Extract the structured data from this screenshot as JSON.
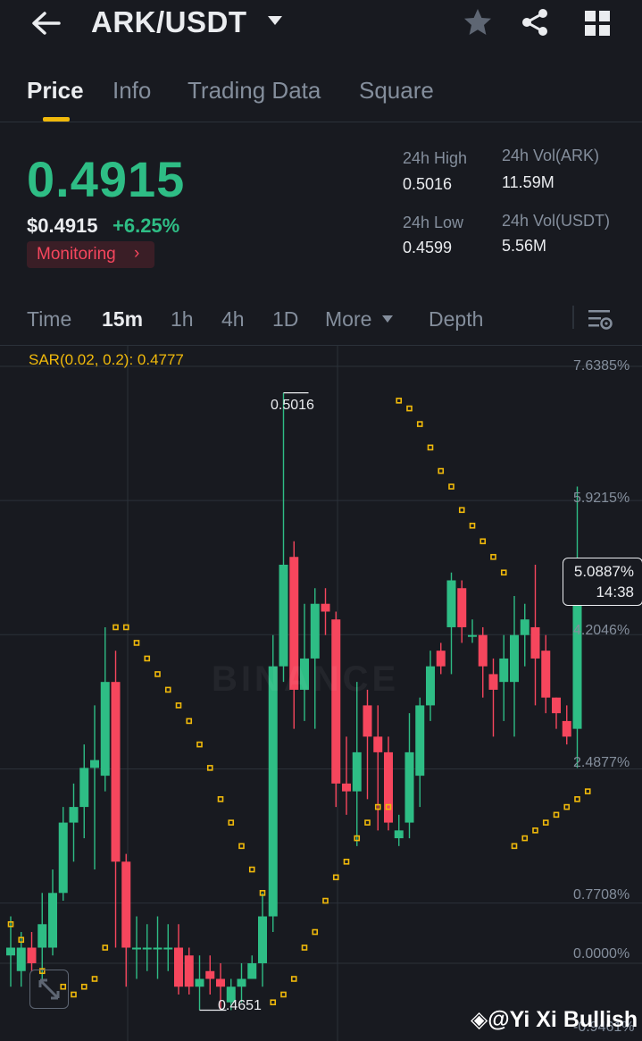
{
  "header": {
    "pair": "ARK/USDT",
    "icons": [
      "back-arrow-icon",
      "caret-down-icon",
      "star-icon",
      "share-icon",
      "grid-icon"
    ]
  },
  "tabs": [
    {
      "label": "Price",
      "active": true
    },
    {
      "label": "Info",
      "active": false
    },
    {
      "label": "Trading Data",
      "active": false
    },
    {
      "label": "Square",
      "active": false
    }
  ],
  "ticker": {
    "last_price": "0.4915",
    "usd_price": "$0.4915",
    "change_pct": "+6.25%",
    "monitoring_label": "Monitoring",
    "monitoring_chevron": "›",
    "high_label": "24h High",
    "high_value": "0.5016",
    "low_label": "24h Low",
    "low_value": "0.4599",
    "vol_base_label": "24h Vol(ARK)",
    "vol_base_value": "11.59M",
    "vol_quote_label": "24h Vol(USDT)",
    "vol_quote_value": "5.56M",
    "up_color": "#2ebd85",
    "down_color": "#f6465d"
  },
  "intervals": {
    "items": [
      {
        "label": "Time",
        "active": false
      },
      {
        "label": "15m",
        "active": true
      },
      {
        "label": "1h",
        "active": false
      },
      {
        "label": "4h",
        "active": false
      },
      {
        "label": "1D",
        "active": false
      },
      {
        "label": "More",
        "active": false
      },
      {
        "label": "Depth",
        "active": false
      }
    ]
  },
  "chart": {
    "indicator_label": "SAR(0.02, 0.2): 0.4777",
    "y_labels": [
      "7.6385%",
      "5.9215%",
      "4.2046%",
      "2.4877%",
      "0.7708%",
      "0.0000%",
      "-0.9461%"
    ],
    "current_pct": "5.0887%",
    "countdown": "14:38",
    "high_marker": "0.5016",
    "low_marker": "0.4651",
    "watermark": "BINANCE",
    "credit": "@Yi Xi Bullish"
  },
  "chart_data": {
    "type": "candlestick",
    "y_axis": "percent change",
    "ylim": [
      -0.9461,
      7.6385
    ],
    "y_ticks": [
      7.6385,
      5.9215,
      4.2046,
      2.4877,
      0.7708,
      0.0,
      -0.9461
    ],
    "candles": [
      [
        0.1,
        0.2,
        0.6,
        -0.3
      ],
      [
        -0.1,
        0.2,
        0.4,
        -0.3
      ],
      [
        0.2,
        0.0,
        0.4,
        -0.1
      ],
      [
        0.2,
        0.5,
        0.9,
        -0.2
      ],
      [
        0.2,
        0.9,
        1.2,
        0.1
      ],
      [
        0.9,
        1.8,
        2.0,
        0.8
      ],
      [
        1.8,
        2.0,
        2.3,
        1.3
      ],
      [
        2.0,
        2.5,
        2.8,
        1.6
      ],
      [
        2.5,
        2.6,
        3.3,
        1.2
      ],
      [
        2.4,
        3.6,
        4.3,
        2.2
      ],
      [
        3.6,
        1.3,
        4.0,
        0.2
      ],
      [
        1.3,
        0.2,
        1.4,
        -0.3
      ],
      [
        0.2,
        0.2,
        0.6,
        -0.2
      ],
      [
        0.2,
        0.2,
        0.5,
        -0.1
      ],
      [
        0.2,
        0.2,
        0.6,
        -0.2
      ],
      [
        0.2,
        0.2,
        0.5,
        -0.1
      ],
      [
        0.2,
        -0.3,
        0.5,
        -0.4
      ],
      [
        0.1,
        -0.3,
        0.2,
        -0.4
      ],
      [
        -0.3,
        -0.2,
        0.1,
        -0.6
      ],
      [
        -0.1,
        -0.2,
        0.1,
        -0.4
      ],
      [
        -0.2,
        -0.3,
        0.0,
        -0.6
      ],
      [
        -0.5,
        -0.3,
        -0.2,
        -0.6
      ],
      [
        -0.3,
        -0.2,
        0.0,
        -0.5
      ],
      [
        -0.2,
        0.0,
        0.1,
        -0.2
      ],
      [
        0.0,
        0.6,
        0.9,
        -0.3
      ],
      [
        0.6,
        3.8,
        4.2,
        0.4
      ],
      [
        3.8,
        5.1,
        7.3,
        3.6
      ],
      [
        5.2,
        3.5,
        5.4,
        3.0
      ],
      [
        3.5,
        3.9,
        4.6,
        3.1
      ],
      [
        3.9,
        4.6,
        4.8,
        3.0
      ],
      [
        4.6,
        4.5,
        4.8,
        4.2
      ],
      [
        4.4,
        2.3,
        4.5,
        2.0
      ],
      [
        2.3,
        2.2,
        2.9,
        1.9
      ],
      [
        2.2,
        2.7,
        3.6,
        1.5
      ],
      [
        3.3,
        2.9,
        3.5,
        2.1
      ],
      [
        2.9,
        2.7,
        3.3,
        1.7
      ],
      [
        2.7,
        1.8,
        2.9,
        1.7
      ],
      [
        1.6,
        1.7,
        1.9,
        1.5
      ],
      [
        1.8,
        2.7,
        3.2,
        1.6
      ],
      [
        2.4,
        3.3,
        3.4,
        2.0
      ],
      [
        3.3,
        3.8,
        4.0,
        3.1
      ],
      [
        4.0,
        3.8,
        4.1,
        3.7
      ],
      [
        4.3,
        4.9,
        5.0,
        3.7
      ],
      [
        4.8,
        4.3,
        4.9,
        4.1
      ],
      [
        4.2,
        4.2,
        4.4,
        4.1
      ],
      [
        4.2,
        3.8,
        4.3,
        3.4
      ],
      [
        3.7,
        3.5,
        3.9,
        2.9
      ],
      [
        3.6,
        3.9,
        4.2,
        3.1
      ],
      [
        3.6,
        4.2,
        4.7,
        2.9
      ],
      [
        4.2,
        4.4,
        4.6,
        3.8
      ],
      [
        4.3,
        3.9,
        5.1,
        3.3
      ],
      [
        4.0,
        3.4,
        4.2,
        3.2
      ],
      [
        3.4,
        3.2,
        3.4,
        3.0
      ],
      [
        3.1,
        2.9,
        3.3,
        2.8
      ],
      [
        3.0,
        5.0,
        6.1,
        2.5
      ],
      [
        5.0,
        4.8,
        5.1,
        4.7
      ]
    ],
    "sar_points": [
      [
        0,
        0.5
      ],
      [
        1,
        0.3
      ],
      [
        3,
        -0.1
      ],
      [
        5,
        -0.3
      ],
      [
        6,
        -0.4
      ],
      [
        7,
        -0.3
      ],
      [
        8,
        -0.2
      ],
      [
        9,
        0.2
      ],
      [
        10,
        4.3
      ],
      [
        11,
        4.3
      ],
      [
        12,
        4.1
      ],
      [
        13,
        3.9
      ],
      [
        14,
        3.7
      ],
      [
        15,
        3.5
      ],
      [
        16,
        3.3
      ],
      [
        17,
        3.1
      ],
      [
        18,
        2.8
      ],
      [
        19,
        2.5
      ],
      [
        20,
        2.1
      ],
      [
        21,
        1.8
      ],
      [
        22,
        1.5
      ],
      [
        23,
        1.2
      ],
      [
        24,
        0.9
      ],
      [
        25,
        -0.5
      ],
      [
        26,
        -0.4
      ],
      [
        27,
        -0.2
      ],
      [
        28,
        0.2
      ],
      [
        29,
        0.4
      ],
      [
        30,
        0.8
      ],
      [
        31,
        1.1
      ],
      [
        32,
        1.3
      ],
      [
        33,
        1.6
      ],
      [
        34,
        1.8
      ],
      [
        35,
        2.0
      ],
      [
        36,
        2.0
      ],
      [
        37,
        7.2
      ],
      [
        38,
        7.1
      ],
      [
        39,
        6.9
      ],
      [
        40,
        6.6
      ],
      [
        41,
        6.3
      ],
      [
        42,
        6.1
      ],
      [
        43,
        5.8
      ],
      [
        44,
        5.6
      ],
      [
        45,
        5.4
      ],
      [
        46,
        5.2
      ],
      [
        47,
        5.0
      ],
      [
        48,
        1.5
      ],
      [
        49,
        1.6
      ],
      [
        50,
        1.7
      ],
      [
        51,
        1.8
      ],
      [
        52,
        1.9
      ],
      [
        53,
        2.0
      ],
      [
        54,
        2.1
      ],
      [
        55,
        2.2
      ]
    ]
  }
}
